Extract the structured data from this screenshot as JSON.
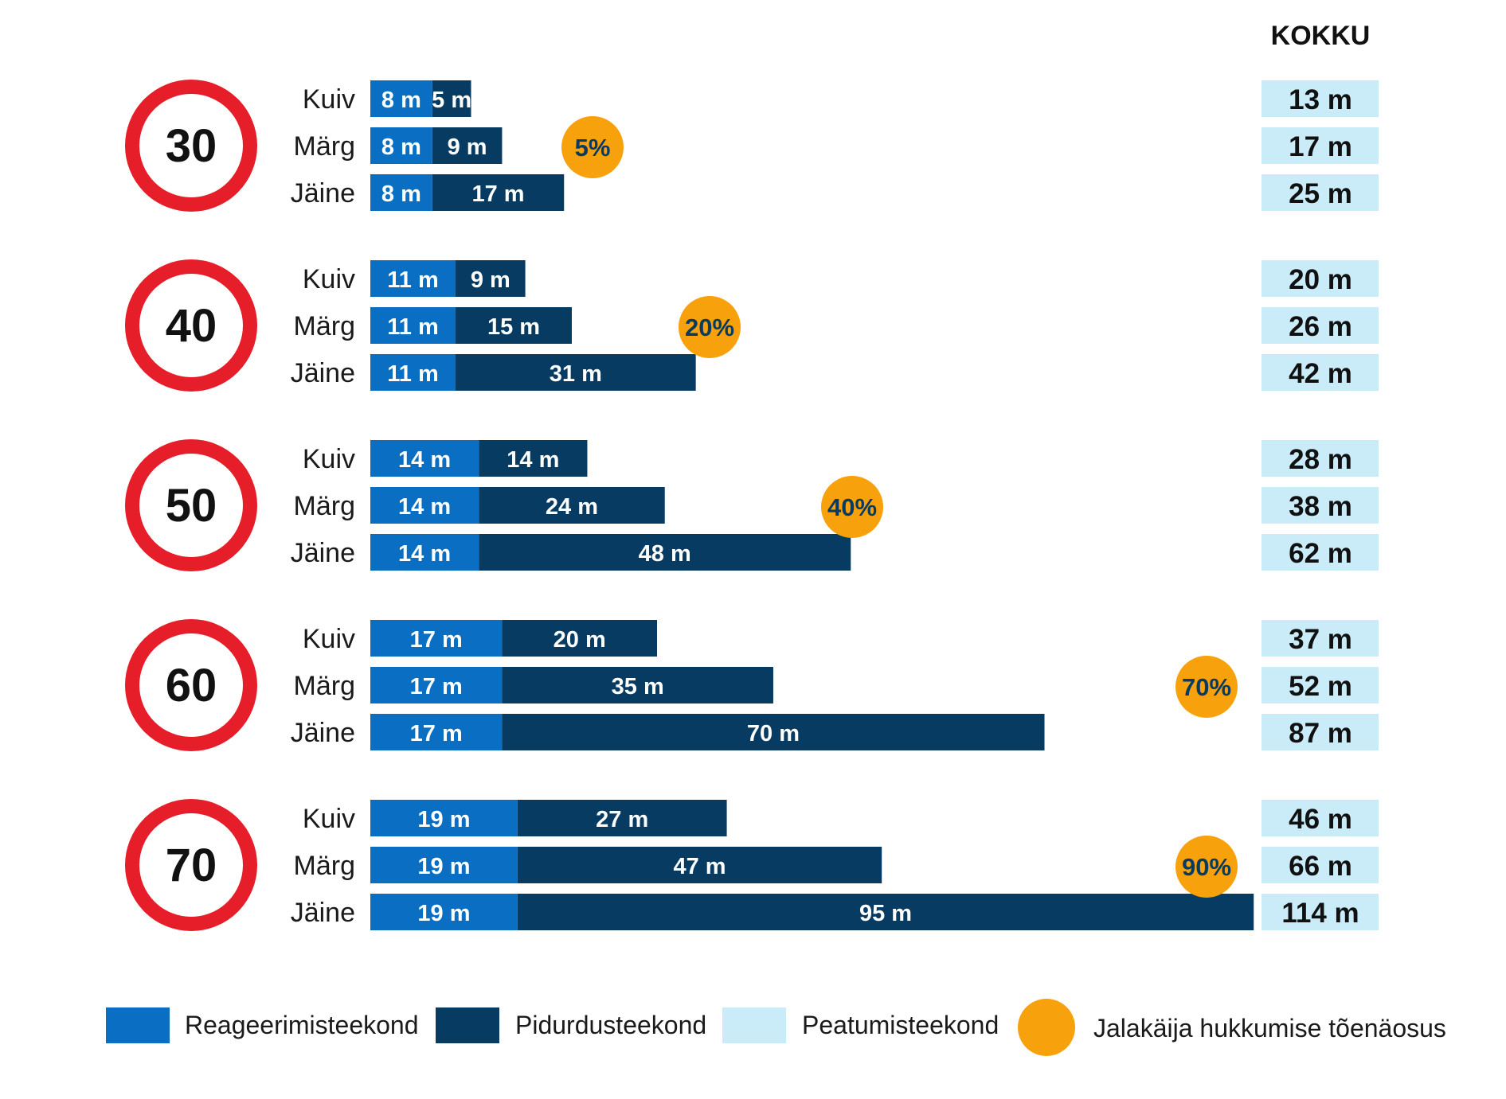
{
  "chart_data": {
    "type": "bar",
    "stacked": true,
    "orientation": "horizontal",
    "total_header": "KOKKU",
    "unit_suffix": " m",
    "colors": {
      "reaction": "#0a6fc2",
      "braking": "#073b62",
      "total_bg": "#c9ecf8",
      "probability": "#f7a10d",
      "sign_ring": "#e61e2a"
    },
    "groups": [
      {
        "speed": "30",
        "probability": "5%",
        "rows": [
          {
            "condition": "Kuiv",
            "reaction": 8,
            "braking": 5,
            "total": 13
          },
          {
            "condition": "Märg",
            "reaction": 8,
            "braking": 9,
            "total": 17
          },
          {
            "condition": "Jäine",
            "reaction": 8,
            "braking": 17,
            "total": 25
          }
        ]
      },
      {
        "speed": "40",
        "probability": "20%",
        "rows": [
          {
            "condition": "Kuiv",
            "reaction": 11,
            "braking": 9,
            "total": 20
          },
          {
            "condition": "Märg",
            "reaction": 11,
            "braking": 15,
            "total": 26
          },
          {
            "condition": "Jäine",
            "reaction": 11,
            "braking": 31,
            "total": 42
          }
        ]
      },
      {
        "speed": "50",
        "probability": "40%",
        "rows": [
          {
            "condition": "Kuiv",
            "reaction": 14,
            "braking": 14,
            "total": 28
          },
          {
            "condition": "Märg",
            "reaction": 14,
            "braking": 24,
            "total": 38
          },
          {
            "condition": "Jäine",
            "reaction": 14,
            "braking": 48,
            "total": 62
          }
        ]
      },
      {
        "speed": "60",
        "probability": "70%",
        "rows": [
          {
            "condition": "Kuiv",
            "reaction": 17,
            "braking": 20,
            "total": 37
          },
          {
            "condition": "Märg",
            "reaction": 17,
            "braking": 35,
            "total": 52
          },
          {
            "condition": "Jäine",
            "reaction": 17,
            "braking": 70,
            "total": 87
          }
        ]
      },
      {
        "speed": "70",
        "probability": "90%",
        "rows": [
          {
            "condition": "Kuiv",
            "reaction": 19,
            "braking": 27,
            "total": 46
          },
          {
            "condition": "Märg",
            "reaction": 19,
            "braking": 47,
            "total": 66
          },
          {
            "condition": "Jäine",
            "reaction": 19,
            "braking": 95,
            "total": 114
          }
        ]
      }
    ],
    "legend": [
      {
        "key": "reaction",
        "label": "Reageerimisteekond"
      },
      {
        "key": "braking",
        "label": "Pidurdusteekond"
      },
      {
        "key": "total",
        "label": "Peatumisteekond"
      },
      {
        "key": "probability",
        "label": "Jalakäija hukkumise tõenäosus"
      }
    ]
  }
}
